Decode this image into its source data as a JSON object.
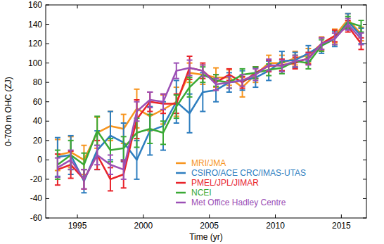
{
  "chart_data": {
    "type": "line",
    "x_label": "Time (yr)",
    "y_label": "0-700 m OHC (ZJ)",
    "x": [
      1993.5,
      1994.5,
      1995.5,
      1996.5,
      1997.5,
      1998.5,
      1999.5,
      2000.5,
      2001.5,
      2002.5,
      2003.5,
      2004.5,
      2005.5,
      2006.5,
      2007.5,
      2008.5,
      2009.5,
      2010.5,
      2011.5,
      2012.5,
      2013.5,
      2014.5,
      2015.5,
      2016.5
    ],
    "xlim": [
      1992.6,
      2016.9
    ],
    "xticks": [
      1995,
      2000,
      2005,
      2010,
      2015
    ],
    "ylim": [
      -60,
      160
    ],
    "yticks": [
      -60,
      -40,
      -20,
      0,
      20,
      40,
      60,
      80,
      100,
      120,
      140,
      160
    ],
    "legend": "lower right",
    "marker": "none",
    "series": [
      {
        "name": "MRI/JMA",
        "color": "#f7941d",
        "values": [
          5,
          8,
          0,
          28,
          35,
          32,
          53,
          45,
          52,
          60,
          90,
          88,
          85,
          85,
          75,
          88,
          100,
          100,
          105,
          108,
          120,
          128,
          145,
          130
        ],
        "errors": [
          16,
          16,
          15,
          16,
          15,
          15,
          20,
          15,
          15,
          15,
          10,
          10,
          10,
          8,
          10,
          8,
          8,
          8,
          7,
          7,
          7,
          7,
          6,
          7
        ]
      },
      {
        "name": "CSIRO/ACE CRC/IMAS-UTAS",
        "color": "#2e7ebf",
        "values": [
          3,
          5,
          -22,
          10,
          25,
          18,
          0,
          30,
          35,
          60,
          48,
          70,
          72,
          80,
          82,
          85,
          92,
          102,
          103,
          110,
          118,
          125,
          143,
          128
        ],
        "errors": [
          20,
          20,
          12,
          20,
          25,
          20,
          20,
          25,
          25,
          22,
          20,
          20,
          12,
          10,
          10,
          10,
          10,
          10,
          8,
          8,
          8,
          8,
          8,
          8
        ]
      },
      {
        "name": "PMEL/JPL/JIMAR",
        "color": "#e8232a",
        "values": [
          -10,
          -5,
          -20,
          5,
          -20,
          -15,
          42,
          60,
          58,
          58,
          95,
          92,
          80,
          88,
          80,
          90,
          97,
          98,
          100,
          105,
          120,
          128,
          138,
          120
        ],
        "errors": [
          16,
          14,
          10,
          15,
          12,
          14,
          20,
          10,
          10,
          10,
          12,
          8,
          8,
          6,
          6,
          6,
          6,
          6,
          6,
          6,
          6,
          6,
          6,
          6
        ]
      },
      {
        "name": "NCEI",
        "color": "#3aa935",
        "values": [
          -5,
          5,
          -5,
          30,
          10,
          12,
          28,
          32,
          28,
          55,
          75,
          88,
          82,
          80,
          88,
          90,
          93,
          95,
          102,
          100,
          118,
          125,
          142,
          138
        ],
        "errors": [
          15,
          15,
          12,
          15,
          12,
          12,
          15,
          15,
          12,
          12,
          10,
          8,
          6,
          6,
          6,
          6,
          6,
          6,
          6,
          6,
          6,
          6,
          6,
          6
        ]
      },
      {
        "name": "Met Office Hadley Centre",
        "color": "#9b4fb5",
        "values": [
          -8,
          0,
          -20,
          5,
          -5,
          -10,
          50,
          62,
          60,
          92,
          95,
          92,
          78,
          80,
          82,
          88,
          98,
          97,
          102,
          104,
          120,
          125,
          140,
          125
        ],
        "errors": [
          10,
          10,
          10,
          10,
          10,
          10,
          10,
          8,
          8,
          8,
          8,
          6,
          6,
          6,
          6,
          6,
          6,
          6,
          6,
          6,
          6,
          6,
          6,
          6
        ]
      }
    ]
  }
}
